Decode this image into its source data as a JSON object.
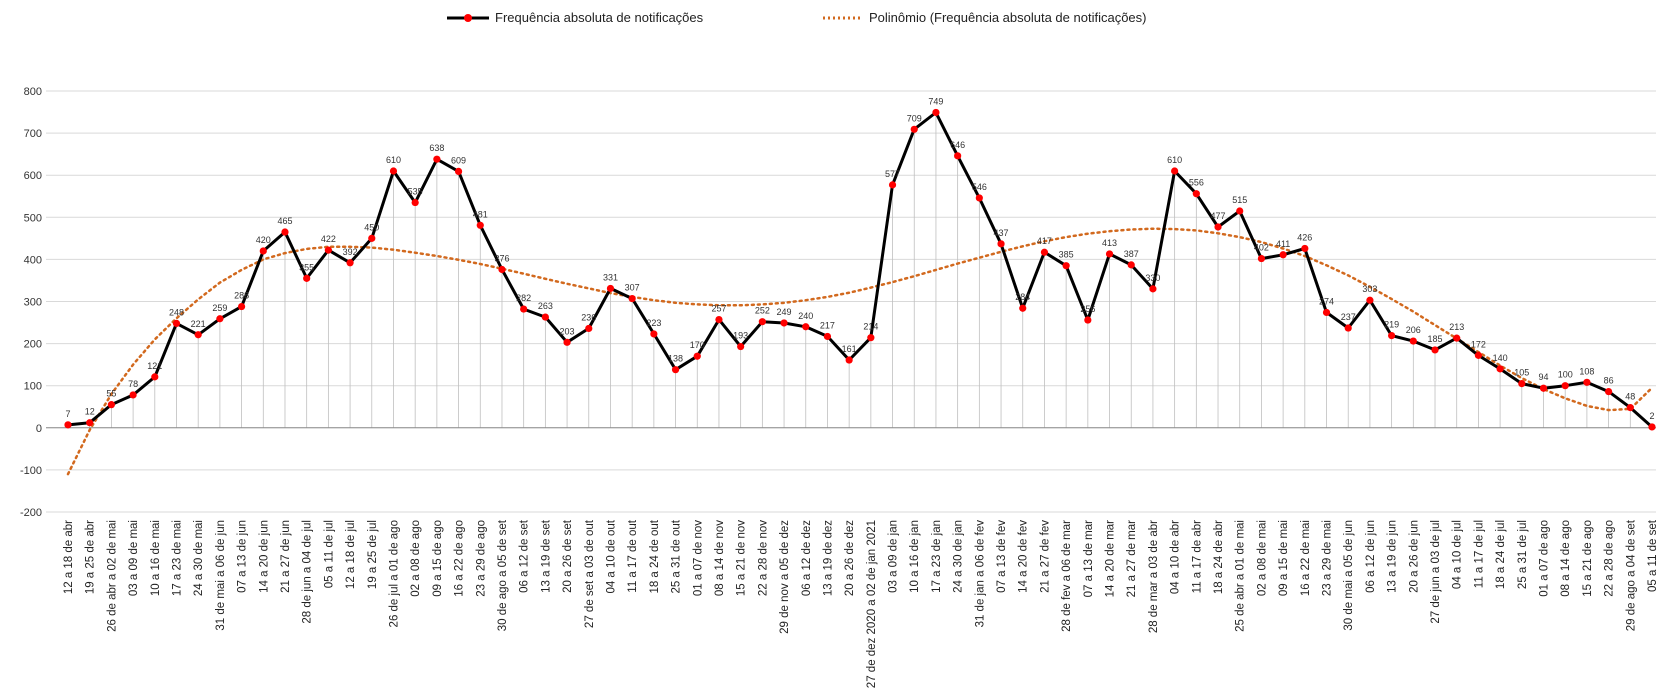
{
  "chart_data": {
    "type": "line",
    "title": "",
    "xlabel": "",
    "ylabel": "",
    "ylim": [
      -200,
      800
    ],
    "yticks": [
      -200,
      -100,
      0,
      100,
      200,
      300,
      400,
      500,
      600,
      700,
      800
    ],
    "grid": true,
    "legend_position": "top",
    "colors": {
      "series_line": "#000000",
      "series_marker": "#ff0000",
      "trend": "#d2691e",
      "grid": "#d9d9d9",
      "droplines": "#bfbfbf"
    },
    "categories": [
      "12 a 18 de abr",
      "19 a 25 de abr",
      "26 de abr a 02 de mai",
      "03 a 09 de mai",
      "10 a 16 de mai",
      "17 a 23 de mai",
      "24 a 30 de mai",
      "31 de mai a 06 de jun",
      "07 a 13 de jun",
      "14 a 20 de jun",
      "21 a 27 de jun",
      "28 de jun a 04 de jul",
      "05 a 11 de jul",
      "12 a 18 de jul",
      "19 a 25 de jul",
      "26 de jul a 01 de ago",
      "02 a 08 de ago",
      "09 a 15 de ago",
      "16 a 22 de ago",
      "23 a 29 de ago",
      "30 de ago a 05 de set",
      "06 a 12 de set",
      "13 a 19 de set",
      "20 a 26 de set",
      "27 de set a 03 de out",
      "04 a 10 de out",
      "11 a 17 de out",
      "18 a 24 de out",
      "25 a 31 de out",
      "01 a 07 de nov",
      "08 a 14 de nov",
      "15 a 21 de nov",
      "22 a 28 de nov",
      "29 de nov a 05 de dez",
      "06 a 12 de dez",
      "13 a 19 de dez",
      "20 a 26 de dez",
      "27 de dez 2020 a 02 de jan 2021",
      "03 a 09 de jan",
      "10 a 16 de jan",
      "17 a 23 de jan",
      "24 a 30 de jan",
      "31 de jan a 06 de fev",
      "07 a 13 de fev",
      "14 a 20 de fev",
      "21 a 27 de fev",
      "28 de fev a 06 de mar",
      "07 a 13 de mar",
      "14 a 20 de mar",
      "21 a 27 de mar",
      "28 de mar a 03 de abr",
      "04 a 10 de abr",
      "11 a 17 de abr",
      "18 a 24 de abr",
      "25 de abr a 01 de mai",
      "02 a 08 de mai",
      "09 a 15 de mai",
      "16 a 22 de mai",
      "23 a 29 de mai",
      "30 de mai a 05 de jun",
      "06 a 12 de jun",
      "13 a 19 de jun",
      "20 a 26 de jun",
      "27 de jun a 03 de jul",
      "04 a 10 de jul",
      "11 a 17 de jul",
      "18 a 24 de jul",
      "25 a 31 de jul",
      "01 a 07 de ago",
      "08 a 14 de ago",
      "15 a 21 de ago",
      "22 a 28 de ago",
      "29 de ago a 04 de set",
      "05 a 11 de set"
    ],
    "series": [
      {
        "name": "Frequência absoluta de notificações",
        "values": [
          7,
          12,
          55,
          78,
          121,
          248,
          221,
          259,
          288,
          420,
          465,
          355,
          422,
          392,
          450,
          610,
          535,
          638,
          609,
          481,
          376,
          282,
          263,
          203,
          236,
          331,
          307,
          223,
          138,
          170,
          257,
          193,
          252,
          249,
          240,
          217,
          161,
          214,
          577,
          709,
          749,
          646,
          546,
          437,
          284,
          417,
          385,
          256,
          413,
          387,
          330,
          610,
          556,
          477,
          515,
          402,
          411,
          426,
          274,
          237,
          303,
          219,
          206,
          185,
          213,
          172,
          140,
          105,
          94,
          100,
          108,
          86,
          48,
          2
        ]
      },
      {
        "name": "Polinômio (Frequência absoluta de notificações)",
        "type": "trend",
        "values": [
          -110,
          -5,
          80,
          150,
          210,
          260,
          305,
          345,
          375,
          400,
          415,
          425,
          430,
          430,
          428,
          423,
          416,
          408,
          399,
          389,
          378,
          366,
          354,
          342,
          331,
          320,
          311,
          303,
          297,
          293,
          291,
          291,
          293,
          297,
          303,
          311,
          321,
          333,
          346,
          360,
          375,
          390,
          404,
          418,
          431,
          443,
          453,
          461,
          467,
          471,
          473,
          472,
          469,
          462,
          453,
          441,
          426,
          408,
          386,
          362,
          335,
          306,
          276,
          244,
          212,
          180,
          148,
          118,
          92,
          70,
          52,
          42,
          45,
          95
        ]
      }
    ]
  }
}
